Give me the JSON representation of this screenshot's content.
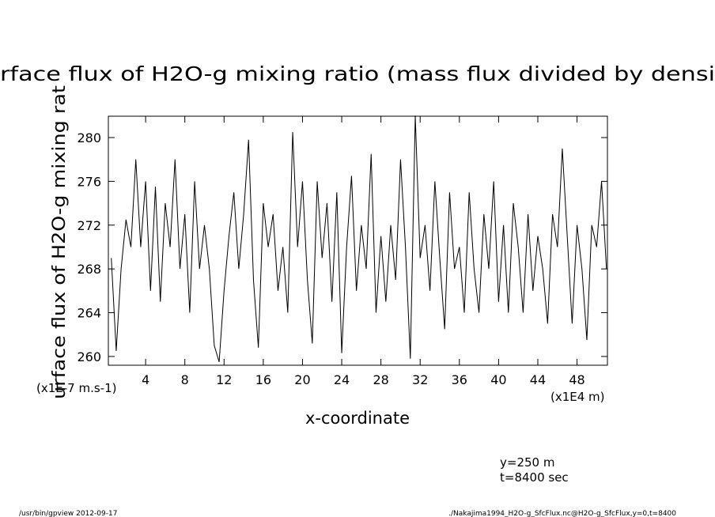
{
  "chart_data": {
    "type": "line",
    "title": "rface flux of H2O-g mixing ratio (mass flux divided by densi",
    "y_label": "urface flux of H2O-g mixing rat",
    "x_label": "x-coordinate",
    "y_unit": "(x1E-7 m.s-1)",
    "x_unit": "(x1E4 m)",
    "annotations": [
      "y=250 m",
      "t=8400 sec"
    ],
    "footer_left": "/usr/bin/gpview  2012-09-17",
    "footer_right": "./Nakajima1994_H2O-g_SfcFlux.nc@H2O-g_SfcFlux,y=0,t=8400",
    "color": "#000000",
    "xlim": [
      0.2,
      51.1
    ],
    "ylim": [
      259.2,
      281.95
    ],
    "xticks": [
      4,
      8,
      12,
      16,
      20,
      24,
      28,
      32,
      36,
      40,
      44,
      48
    ],
    "yticks": [
      260,
      264,
      268,
      272,
      276,
      280
    ],
    "x": [
      0.5,
      1,
      1.5,
      2,
      2.5,
      3,
      3.5,
      4,
      4.5,
      5,
      5.5,
      6,
      6.5,
      7,
      7.5,
      8,
      8.5,
      9,
      9.5,
      10,
      10.5,
      11,
      11.5,
      12,
      12.5,
      13,
      13.5,
      14,
      14.5,
      15,
      15.5,
      16,
      16.5,
      17,
      17.5,
      18,
      18.5,
      19,
      19.5,
      20,
      20.5,
      21,
      21.5,
      22,
      22.5,
      23,
      23.5,
      24,
      24.5,
      25,
      25.5,
      26,
      26.5,
      27,
      27.5,
      28,
      28.5,
      29,
      29.5,
      30,
      30.5,
      31,
      31.5,
      32,
      32.5,
      33,
      33.5,
      34,
      34.5,
      35,
      35.5,
      36,
      36.5,
      37,
      37.5,
      38,
      38.5,
      39,
      39.5,
      40,
      40.5,
      41,
      41.5,
      42,
      42.5,
      43,
      43.5,
      44,
      44.5,
      45,
      45.5,
      46,
      46.5,
      47,
      47.5,
      48,
      48.5,
      49,
      49.5,
      50,
      50.5,
      51
    ],
    "values": [
      269,
      260.5,
      268,
      272.5,
      270,
      278,
      270,
      276,
      266,
      275.5,
      265,
      274,
      270,
      278,
      268,
      273,
      264,
      276,
      268,
      272,
      268,
      261,
      259.5,
      266,
      271,
      275,
      268,
      273,
      279.8,
      267,
      260.8,
      274,
      270,
      273,
      266,
      270,
      264,
      280.5,
      270,
      276,
      267,
      261.2,
      276,
      269,
      274,
      265,
      275,
      260.3,
      270,
      276.5,
      266,
      272,
      268,
      278.5,
      264,
      271,
      265,
      272,
      267,
      278,
      270,
      259.8,
      282,
      269,
      272,
      266,
      276,
      269,
      262.5,
      275,
      268,
      270,
      264,
      275,
      268,
      264,
      273,
      268,
      276,
      265,
      272,
      264,
      274,
      270,
      264,
      273,
      266,
      271,
      268,
      263,
      273,
      270,
      279,
      271,
      263,
      272,
      268,
      261.5,
      272,
      270,
      276,
      268
    ]
  }
}
